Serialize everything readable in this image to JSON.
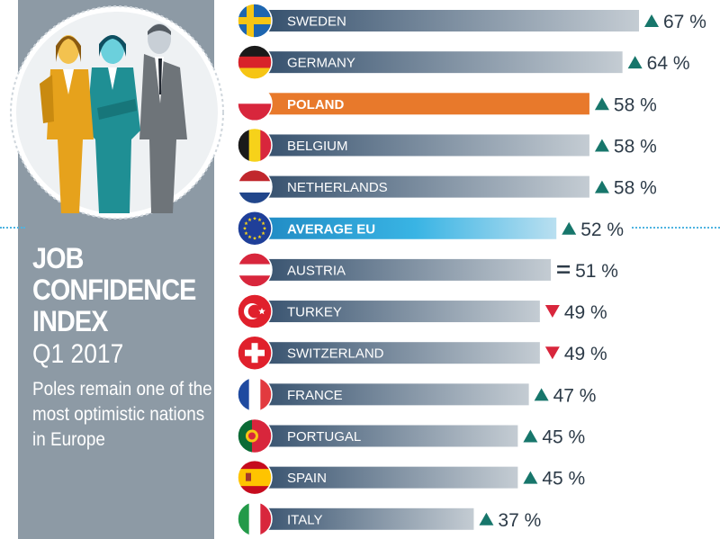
{
  "title": {
    "line1": "JOB",
    "line2": "CONFIDENCE",
    "line3": "INDEX",
    "period": "Q1 2017",
    "description": "Poles remain one of the most optimistic nations in Europe"
  },
  "colors": {
    "panel": "#8d9aa5",
    "bar_dark": "#2e4a68",
    "bar_light": "#c4ccd3",
    "highlight_poland": "#e8792b",
    "highlight_eu": "#2aa6dc",
    "trend_up": "#17766b",
    "trend_down": "#d8263c",
    "trend_same": "#2d3b48"
  },
  "chart_data": {
    "type": "bar",
    "orientation": "horizontal",
    "unit": "%",
    "categories": [
      "SWEDEN",
      "GERMANY",
      "POLAND",
      "BELGIUM",
      "NETHERLANDS",
      "AVERAGE EU",
      "AUSTRIA",
      "TURKEY",
      "SWITZERLAND",
      "FRANCE",
      "PORTUGAL",
      "SPAIN",
      "ITALY"
    ],
    "values": [
      67,
      64,
      58,
      58,
      58,
      52,
      51,
      49,
      49,
      47,
      45,
      45,
      37
    ],
    "value_labels": [
      "67 %",
      "64 %",
      "58 %",
      "58 %",
      "58 %",
      "52 %",
      "51 %",
      "49 %",
      "49 %",
      "47 %",
      "45 %",
      "45 %",
      "37 %"
    ],
    "trend": [
      "up",
      "up",
      "up",
      "up",
      "up",
      "up",
      "same",
      "down",
      "down",
      "up",
      "up",
      "up",
      "up"
    ],
    "highlight": [
      "",
      "",
      "poland",
      "",
      "",
      "eu",
      "",
      "",
      "",
      "",
      "",
      "",
      ""
    ],
    "flags": [
      "sweden-flag-icon",
      "germany-flag-icon",
      "poland-flag-icon",
      "belgium-flag-icon",
      "netherlands-flag-icon",
      "eu-flag-icon",
      "austria-flag-icon",
      "turkey-flag-icon",
      "switzerland-flag-icon",
      "france-flag-icon",
      "portugal-flag-icon",
      "spain-flag-icon",
      "italy-flag-icon"
    ]
  }
}
